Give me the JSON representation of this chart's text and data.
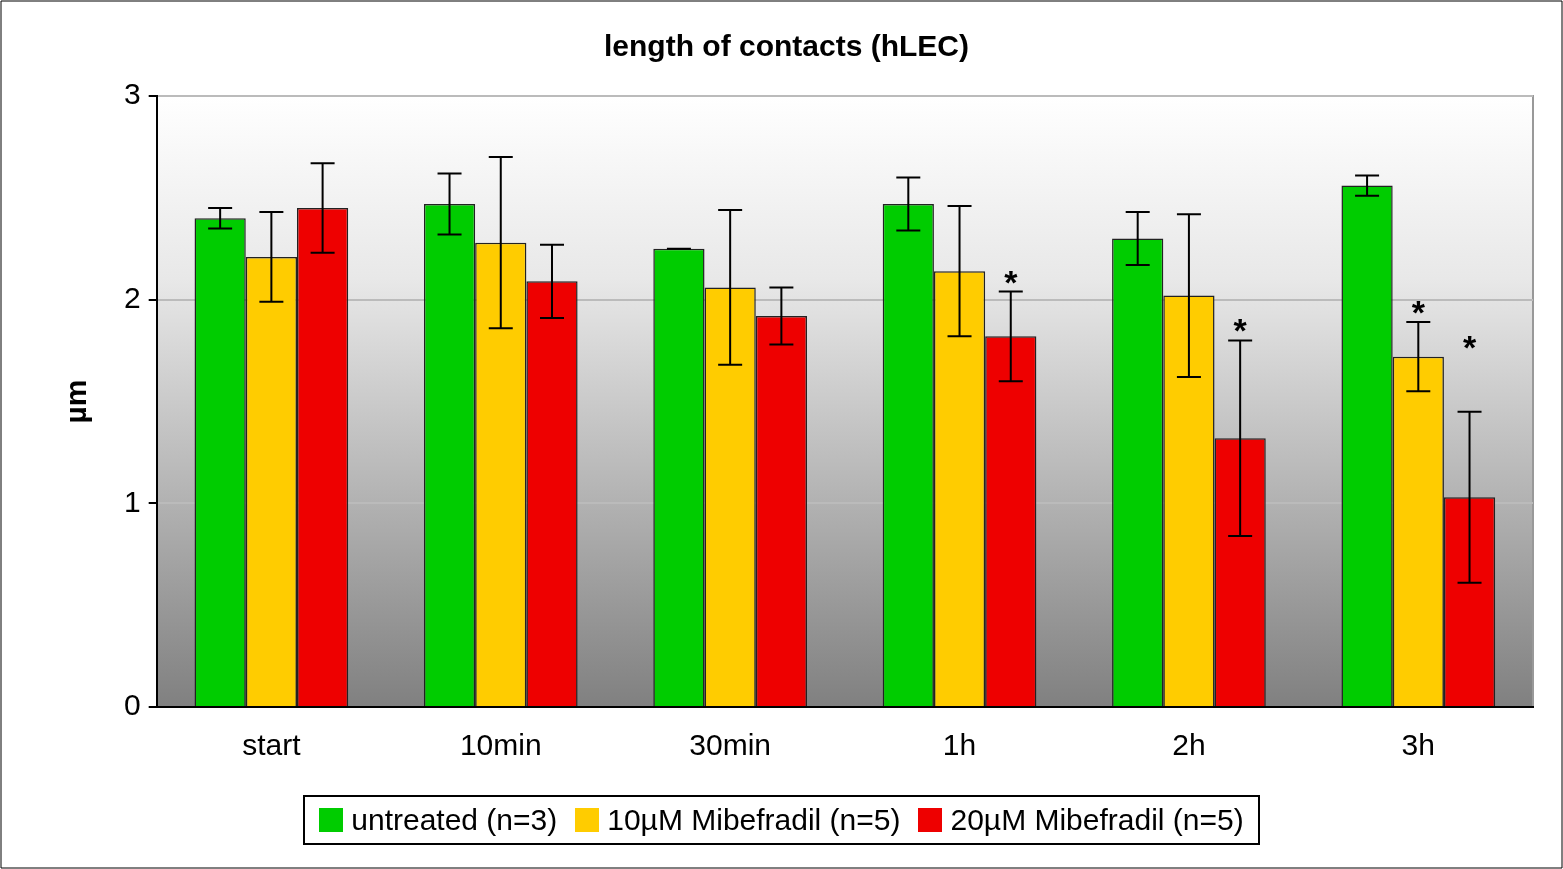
{
  "chart_data": {
    "type": "bar",
    "title": "length of contacts (hLEC)",
    "ylabel": "µm",
    "categories": [
      "start",
      "10min",
      "30min",
      "1h",
      "2h",
      "3h"
    ],
    "series": [
      {
        "name": "untreated (n=3)",
        "color": "#00cc00",
        "values": [
          2.4,
          2.47,
          2.25,
          2.47,
          2.3,
          2.56
        ],
        "errors": [
          0.05,
          0.15,
          0,
          0.13,
          0.13,
          0.05
        ]
      },
      {
        "name": "10µM Mibefradil (n=5)",
        "color": "#ffcc00",
        "values": [
          2.21,
          2.28,
          2.06,
          2.14,
          2.02,
          1.72
        ],
        "errors": [
          0.22,
          0.42,
          0.38,
          0.32,
          0.4,
          0.17
        ]
      },
      {
        "name": "20µM Mibefradil (n=5)",
        "color": "#ee0000",
        "values": [
          2.45,
          2.09,
          1.92,
          1.82,
          1.32,
          1.03
        ],
        "errors": [
          0.22,
          0.18,
          0.14,
          0.22,
          0.48,
          0.42
        ]
      }
    ],
    "ylim": [
      0,
      3
    ],
    "yticks": [
      0,
      1,
      2,
      3
    ],
    "grid": "y",
    "legend": "bottom",
    "annotations": [
      {
        "text": "*",
        "x": "1h",
        "y": 2.04
      },
      {
        "text": "*",
        "x": "2h",
        "y": 1.8
      },
      {
        "text": "*",
        "x": "3h",
        "y": 1.89
      },
      {
        "text": "*",
        "x": "3h",
        "y": 1.72
      }
    ]
  }
}
